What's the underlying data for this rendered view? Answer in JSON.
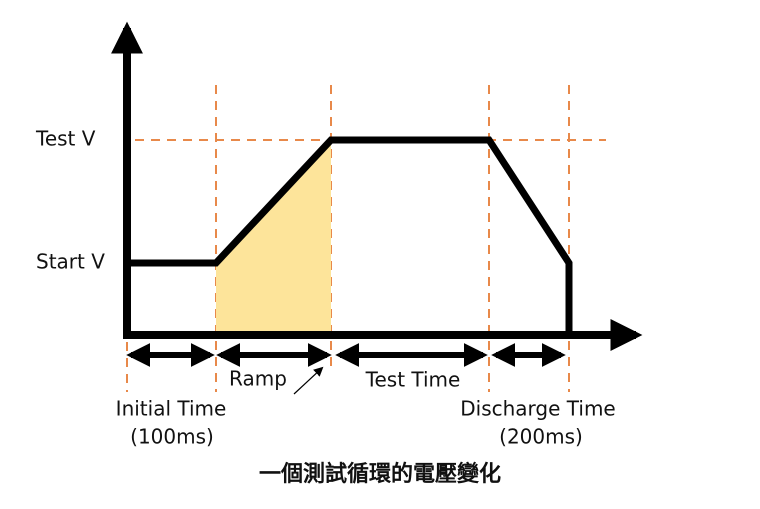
{
  "axis_labels": {
    "test_v": "Test V",
    "start_v": "Start V"
  },
  "phases": {
    "ramp": "Ramp",
    "test_time": "Test Time",
    "initial_time": "Initial Time",
    "initial_duration": "(100ms)",
    "discharge_time": "Discharge Time",
    "discharge_duration": "(200ms)"
  },
  "caption": "一個測試循環的電壓變化"
}
